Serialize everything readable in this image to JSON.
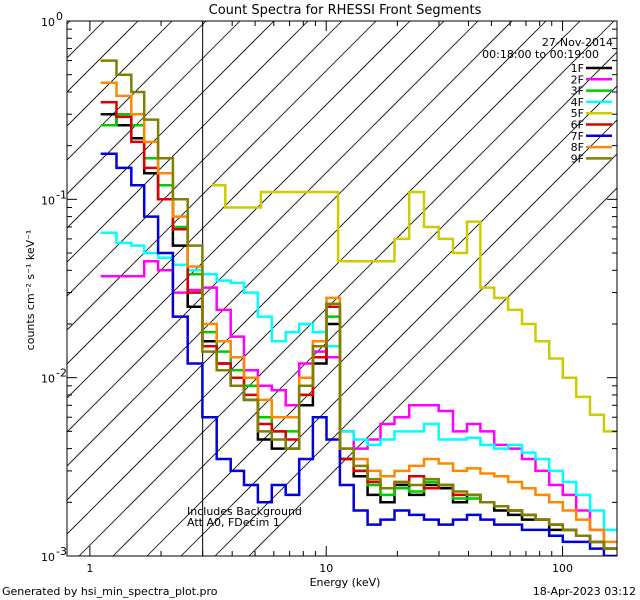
{
  "chart_data": {
    "type": "line",
    "title": "Count Spectra for RHESSI Front Segments",
    "xlabel": "Energy (keV)",
    "ylabel": "counts cm⁻² s⁻¹ keV⁻¹",
    "x_scale": "log",
    "y_scale": "log",
    "xlim": [
      0.8,
      170
    ],
    "ylim": [
      0.001,
      1.0
    ],
    "x_ticks": [
      {
        "value": 1,
        "label": "1"
      },
      {
        "value": 10,
        "label": "10"
      },
      {
        "value": 100,
        "label": "100"
      }
    ],
    "y_ticks": [
      {
        "value": 1,
        "label": "10",
        "exp": "0"
      },
      {
        "value": 0.1,
        "label": "10",
        "exp": "-1"
      },
      {
        "value": 0.01,
        "label": "10",
        "exp": "-2"
      },
      {
        "value": 0.001,
        "label": "10",
        "exp": "-3"
      }
    ],
    "hatched_region": {
      "from": 0.8,
      "to": 3.0
    },
    "legend_position": "top-right",
    "date": "27-Nov-2014",
    "time_range": "00:18:00 to 00:19:00",
    "annotations": [
      "Includes Background",
      "Att A0, FDecim 1"
    ],
    "footer_left": "Generated by hsi_min_spectra_plot.pro",
    "footer_right": "18-Apr-2023 03:12",
    "series": [
      {
        "name": "1F",
        "color": "#000000",
        "x": [
          1.2,
          1.4,
          1.6,
          1.8,
          2.1,
          2.4,
          2.8,
          3.2,
          3.7,
          4.2,
          4.8,
          5.5,
          6.3,
          7.2,
          8.2,
          9.4,
          10.7,
          12.2,
          14,
          16,
          18,
          21,
          24,
          28,
          32,
          37,
          42,
          48,
          55,
          63,
          72,
          82,
          94,
          107,
          122,
          140,
          160
        ],
        "values": [
          0.3,
          0.26,
          0.22,
          0.14,
          0.1,
          0.055,
          0.025,
          0.016,
          0.012,
          0.009,
          0.0075,
          0.0045,
          0.004,
          0.004,
          0.007,
          0.012,
          0.02,
          0.0035,
          0.0028,
          0.0022,
          0.002,
          0.0025,
          0.0022,
          0.0025,
          0.0024,
          0.002,
          0.0022,
          0.002,
          0.0018,
          0.0017,
          0.0016,
          0.0016,
          0.0014,
          0.0014,
          0.0013,
          0.0012,
          0.0011
        ]
      },
      {
        "name": "2F",
        "color": "#ff00ff",
        "x": [
          1.2,
          1.4,
          1.6,
          1.8,
          2.1,
          2.4,
          2.8,
          3.2,
          3.7,
          4.2,
          4.8,
          5.5,
          6.3,
          7.2,
          8.2,
          9.4,
          10.7,
          12.2,
          14,
          16,
          18,
          21,
          24,
          28,
          32,
          37,
          42,
          48,
          55,
          63,
          72,
          82,
          94,
          107,
          122,
          140,
          160
        ],
        "values": [
          0.037,
          0.037,
          0.037,
          0.045,
          0.04,
          0.03,
          0.031,
          0.032,
          0.024,
          0.017,
          0.011,
          0.009,
          0.0085,
          0.007,
          0.012,
          0.014,
          0.013,
          0.005,
          0.004,
          0.0045,
          0.0055,
          0.006,
          0.007,
          0.007,
          0.0065,
          0.005,
          0.0055,
          0.005,
          0.0042,
          0.004,
          0.0035,
          0.003,
          0.0025,
          0.0022,
          0.0018,
          0.0014,
          0.0011
        ]
      },
      {
        "name": "3F",
        "color": "#00cc00",
        "x": [
          1.2,
          1.4,
          1.6,
          1.8,
          2.1,
          2.4,
          2.8,
          3.2,
          3.7,
          4.2,
          4.8,
          5.5,
          6.3,
          7.2,
          8.2,
          9.4,
          10.7,
          12.2,
          14,
          16,
          18,
          21,
          24,
          28,
          32,
          37,
          42,
          48,
          55,
          63,
          72,
          82,
          94,
          107,
          122,
          140,
          160
        ],
        "values": [
          0.26,
          0.3,
          0.26,
          0.17,
          0.12,
          0.07,
          0.038,
          0.018,
          0.014,
          0.011,
          0.009,
          0.006,
          0.005,
          0.005,
          0.008,
          0.013,
          0.022,
          0.004,
          0.003,
          0.0025,
          0.0022,
          0.0024,
          0.0023,
          0.0026,
          0.0025,
          0.0021,
          0.0021,
          0.002,
          0.0019,
          0.0018,
          0.0017,
          0.0016,
          0.0015,
          0.0014,
          0.0013,
          0.0012,
          0.0011
        ]
      },
      {
        "name": "4F",
        "color": "#00ffff",
        "x": [
          1.2,
          1.4,
          1.6,
          1.8,
          2.1,
          2.4,
          2.8,
          3.2,
          3.7,
          4.2,
          4.8,
          5.5,
          6.3,
          7.2,
          8.2,
          9.4,
          10.7,
          12.2,
          14,
          16,
          18,
          21,
          24,
          28,
          32,
          37,
          42,
          48,
          55,
          63,
          72,
          82,
          94,
          107,
          122,
          140,
          160
        ],
        "values": [
          0.065,
          0.057,
          0.055,
          0.05,
          0.047,
          0.043,
          0.04,
          0.038,
          0.035,
          0.034,
          0.03,
          0.022,
          0.016,
          0.018,
          0.02,
          0.018,
          0.015,
          0.005,
          0.0045,
          0.0042,
          0.0045,
          0.005,
          0.005,
          0.0055,
          0.0045,
          0.0045,
          0.0046,
          0.0042,
          0.004,
          0.0042,
          0.0038,
          0.0035,
          0.003,
          0.0026,
          0.0022,
          0.0018,
          0.0014
        ]
      },
      {
        "name": "5F",
        "color": "#cccc00",
        "x": [
          3.5,
          4.0,
          7.0,
          18,
          21,
          24,
          28,
          32,
          37,
          42,
          48,
          55,
          63,
          72,
          82,
          94,
          107,
          122,
          140,
          160
        ],
        "values": [
          0.12,
          0.09,
          0.11,
          0.045,
          0.06,
          0.11,
          0.07,
          0.06,
          0.05,
          0.075,
          0.032,
          0.028,
          0.024,
          0.02,
          0.016,
          0.0128,
          0.01,
          0.0078,
          0.0062,
          0.005
        ]
      },
      {
        "name": "6F",
        "color": "#dd0000",
        "x": [
          1.2,
          1.4,
          1.6,
          1.8,
          2.1,
          2.4,
          2.8,
          3.2,
          3.7,
          4.2,
          4.8,
          5.5,
          6.3,
          7.2,
          8.2,
          9.4,
          10.7,
          12.2,
          14,
          16,
          18,
          21,
          24,
          28,
          32,
          37,
          42,
          48,
          55,
          63,
          72,
          82,
          94,
          107,
          122,
          140,
          160
        ],
        "values": [
          0.35,
          0.29,
          0.21,
          0.15,
          0.1,
          0.068,
          0.03,
          0.015,
          0.012,
          0.01,
          0.008,
          0.0055,
          0.005,
          0.0045,
          0.008,
          0.013,
          0.025,
          0.0035,
          0.003,
          0.0026,
          0.0024,
          0.0026,
          0.0028,
          0.0024,
          0.0025,
          0.0022,
          0.0022,
          0.002,
          0.0019,
          0.0018,
          0.0017,
          0.0016,
          0.0015,
          0.0014,
          0.0013,
          0.0012,
          0.0011
        ]
      },
      {
        "name": "7F",
        "color": "#0000dd",
        "x": [
          1.2,
          1.4,
          1.6,
          1.8,
          2.1,
          2.4,
          2.8,
          3.2,
          3.7,
          4.2,
          4.8,
          5.5,
          6.3,
          7.2,
          8.2,
          9.4,
          10.7,
          12.2,
          14,
          16,
          18,
          21,
          24,
          28,
          32,
          37,
          42,
          48,
          55,
          63,
          72,
          82,
          94,
          107,
          122,
          140,
          160
        ],
        "values": [
          0.18,
          0.15,
          0.12,
          0.08,
          0.05,
          0.022,
          0.012,
          0.006,
          0.0035,
          0.003,
          0.0025,
          0.002,
          0.0025,
          0.0022,
          0.0035,
          0.006,
          0.0045,
          0.0025,
          0.0018,
          0.0015,
          0.0016,
          0.0018,
          0.0017,
          0.0016,
          0.0015,
          0.0016,
          0.0017,
          0.0016,
          0.0015,
          0.0015,
          0.0014,
          0.0014,
          0.0013,
          0.0012,
          0.0012,
          0.0011,
          0.001
        ]
      },
      {
        "name": "8F",
        "color": "#ff8800",
        "x": [
          1.2,
          1.4,
          1.6,
          1.8,
          2.1,
          2.4,
          2.8,
          3.2,
          3.7,
          4.2,
          4.8,
          5.5,
          6.3,
          7.2,
          8.2,
          9.4,
          10.7,
          12.2,
          14,
          16,
          18,
          21,
          24,
          28,
          32,
          37,
          42,
          48,
          55,
          63,
          72,
          82,
          94,
          107,
          122,
          140,
          160
        ],
        "values": [
          0.45,
          0.38,
          0.3,
          0.21,
          0.14,
          0.08,
          0.042,
          0.02,
          0.016,
          0.013,
          0.01,
          0.0075,
          0.006,
          0.006,
          0.01,
          0.016,
          0.028,
          0.004,
          0.0035,
          0.003,
          0.0028,
          0.003,
          0.0032,
          0.0035,
          0.0033,
          0.003,
          0.0031,
          0.0029,
          0.0028,
          0.0026,
          0.0024,
          0.0022,
          0.002,
          0.0018,
          0.0016,
          0.0014,
          0.0012
        ]
      },
      {
        "name": "9F",
        "color": "#808000",
        "x": [
          1.2,
          1.4,
          1.6,
          1.8,
          2.1,
          2.4,
          2.8,
          3.2,
          3.7,
          4.2,
          4.8,
          5.5,
          6.3,
          7.2,
          8.2,
          9.4,
          10.7,
          12.2,
          14,
          16,
          18,
          21,
          24,
          28,
          32,
          37,
          42,
          48,
          55,
          63,
          72,
          82,
          94,
          107,
          122,
          140,
          160
        ],
        "values": [
          0.6,
          0.5,
          0.4,
          0.28,
          0.17,
          0.1,
          0.055,
          0.014,
          0.011,
          0.009,
          0.0075,
          0.005,
          0.0045,
          0.004,
          0.009,
          0.015,
          0.026,
          0.004,
          0.0032,
          0.0027,
          0.0024,
          0.0026,
          0.0025,
          0.0027,
          0.0025,
          0.0023,
          0.0022,
          0.002,
          0.0019,
          0.0018,
          0.0017,
          0.0016,
          0.0015,
          0.0014,
          0.0013,
          0.0012,
          0.0011
        ]
      }
    ]
  }
}
